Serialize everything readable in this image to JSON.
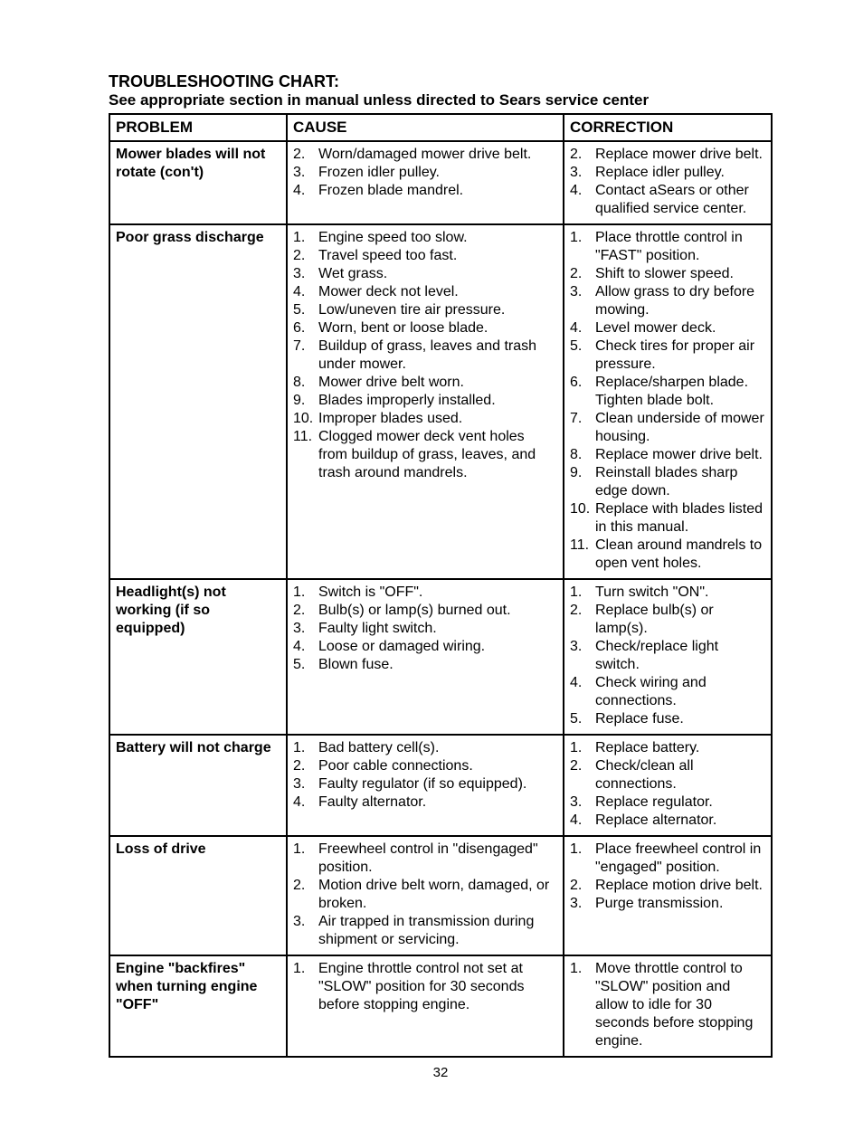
{
  "title_main": "TROUBLESHOOTING CHART:",
  "title_sub": "See appropriate section in manual unless directed to Sears service center",
  "headers": {
    "problem": "PROBLEM",
    "cause": "CAUSE",
    "correction": "CORRECTION"
  },
  "page_number": "32",
  "rows": [
    {
      "problem": "Mower blades will not rotate (con't)",
      "causes": [
        {
          "n": "2",
          "t": "Worn/damaged mower drive belt."
        },
        {
          "n": "3",
          "t": "Frozen idler pulley."
        },
        {
          "n": "4",
          "t": "Frozen blade mandrel."
        }
      ],
      "corrections": [
        {
          "n": "2",
          "t": "Replace mower drive belt."
        },
        {
          "n": "3",
          "t": "Replace idler pulley."
        },
        {
          "n": "4",
          "t": "Contact aSears or other qualified service center."
        }
      ]
    },
    {
      "problem": "Poor grass discharge",
      "causes": [
        {
          "n": "1",
          "t": "Engine speed too slow."
        },
        {
          "n": "2",
          "t": "Travel speed too fast."
        },
        {
          "n": "3",
          "t": "Wet grass."
        },
        {
          "n": "4",
          "t": "Mower deck not level."
        },
        {
          "n": "5",
          "t": "Low/uneven tire air pressure."
        },
        {
          "n": "6",
          "t": "Worn, bent or loose blade."
        },
        {
          "n": "7",
          "t": "Buildup of grass, leaves and trash under mower."
        },
        {
          "n": "8",
          "t": "Mower drive belt worn."
        },
        {
          "n": "9",
          "t": "Blades improperly installed."
        },
        {
          "n": "10",
          "t": "Improper blades used."
        },
        {
          "n": "11",
          "t": "Clogged mower deck vent holes from buildup of grass, leaves, and trash around mandrels."
        }
      ],
      "corrections": [
        {
          "n": "1",
          "t": "Place throttle control in \"FAST\" position."
        },
        {
          "n": "2",
          "t": "Shift to slower speed."
        },
        {
          "n": "3",
          "t": "Allow grass to dry before mowing."
        },
        {
          "n": "4",
          "t": "Level mower deck."
        },
        {
          "n": "5",
          "t": "Check tires for proper air pressure."
        },
        {
          "n": "6",
          "t": "Replace/sharpen blade. Tighten blade bolt."
        },
        {
          "n": "7",
          "t": "Clean underside of mower housing."
        },
        {
          "n": "8",
          "t": "Replace mower drive belt."
        },
        {
          "n": "9",
          "t": "Reinstall blades sharp edge down."
        },
        {
          "n": "10",
          "t": "Replace with blades listed in this manual."
        },
        {
          "n": "11",
          "t": "Clean around mandrels to open vent holes."
        }
      ]
    },
    {
      "problem": "Headlight(s) not working (if so equipped)",
      "causes": [
        {
          "n": "1",
          "t": "Switch is \"OFF\"."
        },
        {
          "n": "2",
          "t": "Bulb(s) or lamp(s) burned out."
        },
        {
          "n": "3",
          "t": "Faulty light switch."
        },
        {
          "n": "4",
          "t": "Loose or damaged wiring."
        },
        {
          "n": "5",
          "t": "Blown fuse."
        }
      ],
      "corrections": [
        {
          "n": "1",
          "t": "Turn switch \"ON\"."
        },
        {
          "n": "2",
          "t": "Replace bulb(s) or lamp(s)."
        },
        {
          "n": "3",
          "t": "Check/replace light switch."
        },
        {
          "n": "4",
          "t": "Check wiring and connections."
        },
        {
          "n": "5",
          "t": "Replace fuse."
        }
      ]
    },
    {
      "problem": "Battery will not charge",
      "causes": [
        {
          "n": "1",
          "t": "Bad battery cell(s)."
        },
        {
          "n": "2",
          "t": "Poor cable connections."
        },
        {
          "n": "3",
          "t": "Faulty regulator (if so equipped)."
        },
        {
          "n": "4",
          "t": "Faulty alternator."
        }
      ],
      "corrections": [
        {
          "n": "1",
          "t": "Replace battery."
        },
        {
          "n": "2",
          "t": "Check/clean all connections."
        },
        {
          "n": "3",
          "t": "Replace regulator."
        },
        {
          "n": "4",
          "t": "Replace alternator."
        }
      ]
    },
    {
      "problem": "Loss of drive",
      "causes": [
        {
          "n": "1",
          "t": "Freewheel control in \"disengaged\" position."
        },
        {
          "n": "2",
          "t": "Motion drive belt worn, damaged, or broken."
        },
        {
          "n": "3",
          "t": "Air trapped in transmission during shipment or servicing."
        }
      ],
      "corrections": [
        {
          "n": "1",
          "t": "Place freewheel control in \"engaged\" position."
        },
        {
          "n": "2",
          "t": "Replace motion drive belt."
        },
        {
          "n": "3",
          "t": "Purge transmission."
        }
      ]
    },
    {
      "problem": "Engine \"backfires\" when turning engine \"OFF\"",
      "causes": [
        {
          "n": "1",
          "t": "Engine throttle control not set at \"SLOW\" position for 30 seconds before stopping engine."
        }
      ],
      "corrections": [
        {
          "n": "1",
          "t": "Move throttle control to \"SLOW\" position and allow to idle for 30 seconds before stopping engine."
        }
      ]
    }
  ]
}
